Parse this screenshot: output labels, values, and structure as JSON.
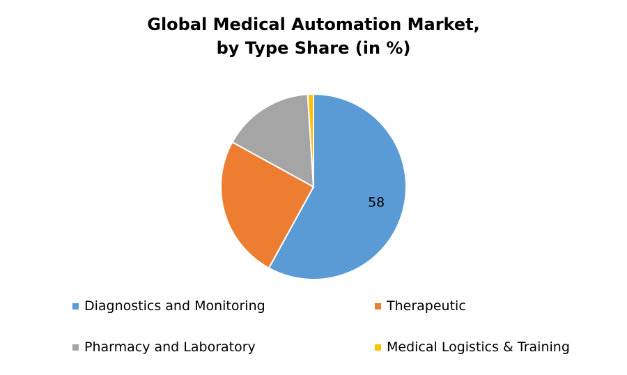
{
  "chart_data": {
    "type": "pie",
    "title_lines": [
      "Global Medical Automation Market,",
      "by Type Share (in %)"
    ],
    "categories": [
      "Diagnostics and Monitoring",
      "Therapeutic",
      "Pharmacy and Laboratory",
      "Medical Logistics & Training"
    ],
    "values": [
      58,
      25,
      16,
      1
    ],
    "colors": [
      "#5B9BD5",
      "#ED7D31",
      "#A5A5A5",
      "#FFC000"
    ],
    "data_labels": [
      "58",
      "",
      "",
      ""
    ],
    "legend_position": "bottom"
  }
}
